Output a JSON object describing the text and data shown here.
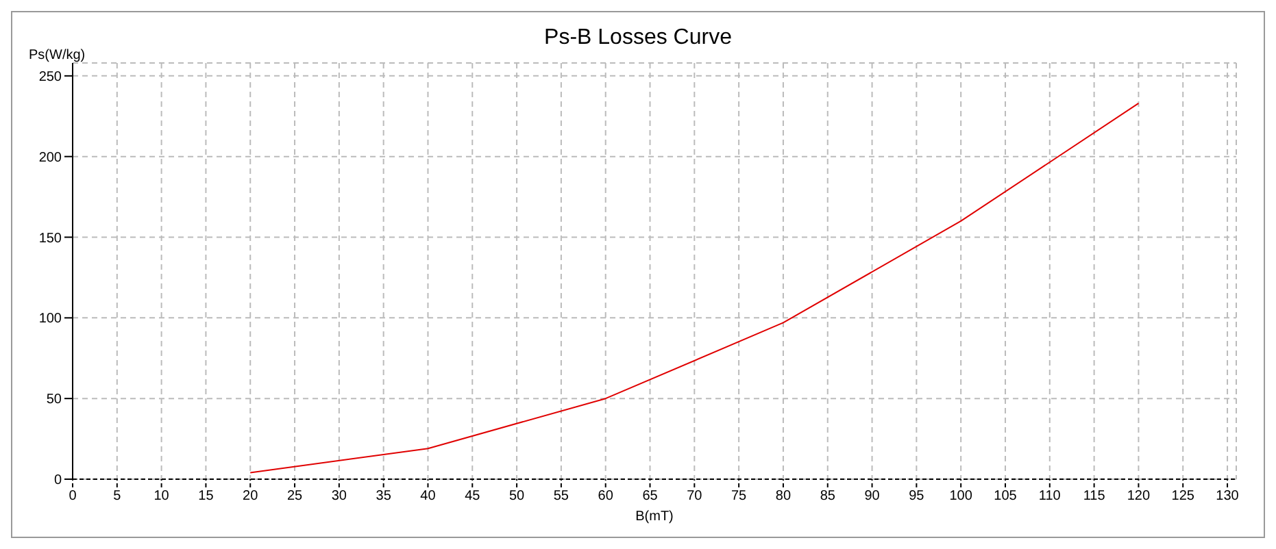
{
  "chart_data": {
    "type": "line",
    "title": "Ps-B Losses Curve",
    "xlabel": "B(mT)",
    "ylabel": "Ps(W/kg)",
    "x": [
      20,
      40,
      60,
      80,
      100,
      120
    ],
    "series": [
      {
        "color": "#e00000",
        "values": [
          4,
          19,
          50,
          97,
          160,
          233
        ]
      }
    ],
    "xlim": [
      0,
      131
    ],
    "xticks": [
      0,
      5,
      10,
      15,
      20,
      25,
      30,
      35,
      40,
      45,
      50,
      55,
      60,
      65,
      70,
      75,
      80,
      85,
      90,
      95,
      100,
      105,
      110,
      115,
      120,
      125,
      130
    ],
    "ylim": [
      0,
      258
    ],
    "yticks": [
      0,
      50,
      100,
      150,
      200,
      250
    ],
    "grid": true,
    "marker": "none",
    "line_style": "solid"
  }
}
